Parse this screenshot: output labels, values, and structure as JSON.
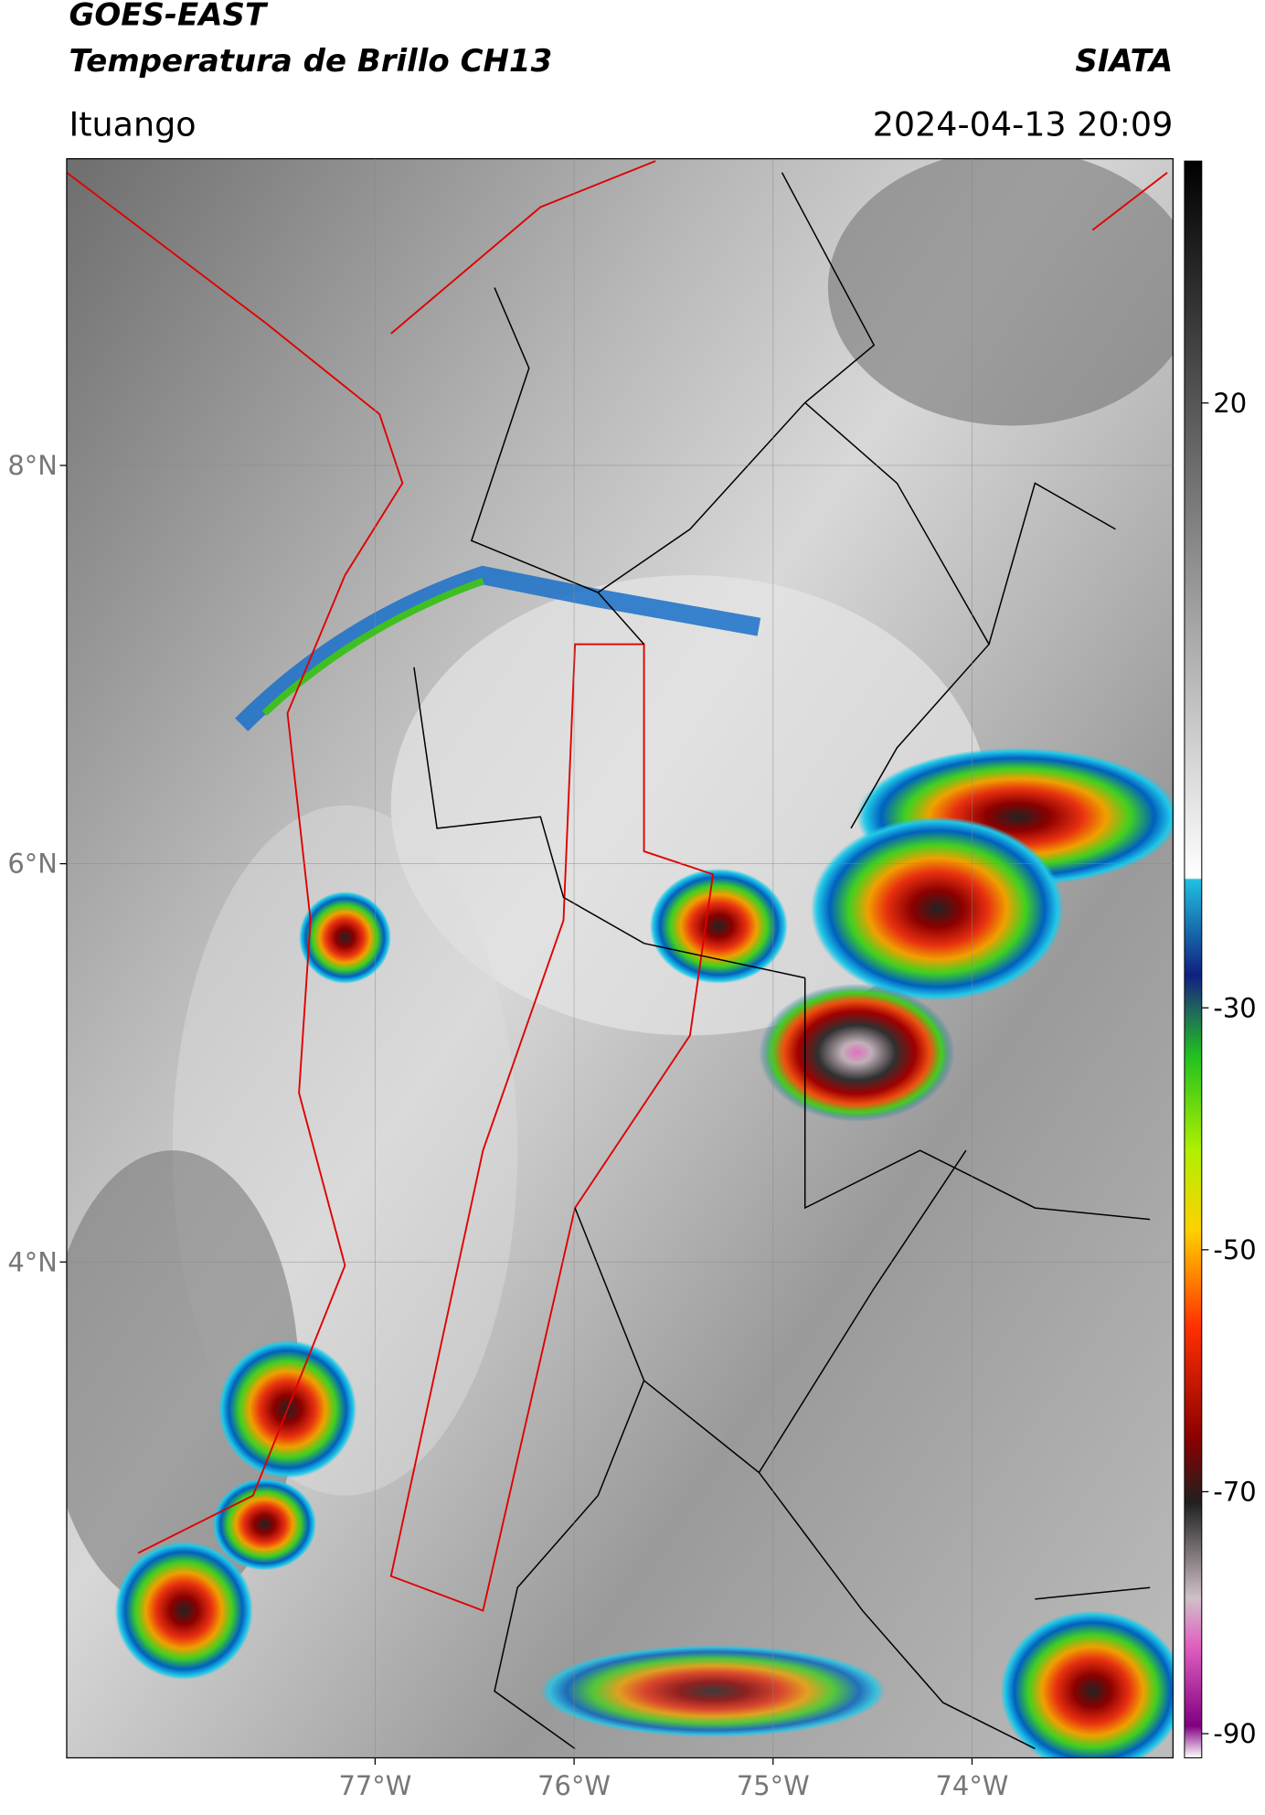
{
  "header": {
    "title_line1": "GOES-EAST",
    "title_line2": "Temperatura de Brillo CH13",
    "source": "SIATA",
    "location": "Ituango",
    "datetime": "2024-04-13 20:09"
  },
  "map": {
    "xlim": [
      -78.55,
      -72.99
    ],
    "ylim": [
      1.51,
      9.54
    ],
    "xticks": [
      {
        "value": -77,
        "label": "77°W"
      },
      {
        "value": -76,
        "label": "76°W"
      },
      {
        "value": -75,
        "label": "75°W"
      },
      {
        "value": -74,
        "label": "74°W"
      }
    ],
    "yticks": [
      {
        "value": 8,
        "label": "8°N"
      },
      {
        "value": 6,
        "label": "6°N"
      },
      {
        "value": 4,
        "label": "4°N"
      }
    ],
    "grid": true
  },
  "colorbar": {
    "lim": [
      -92,
      40
    ],
    "ticks": [
      20,
      -30,
      -50,
      -70,
      -90
    ]
  }
}
